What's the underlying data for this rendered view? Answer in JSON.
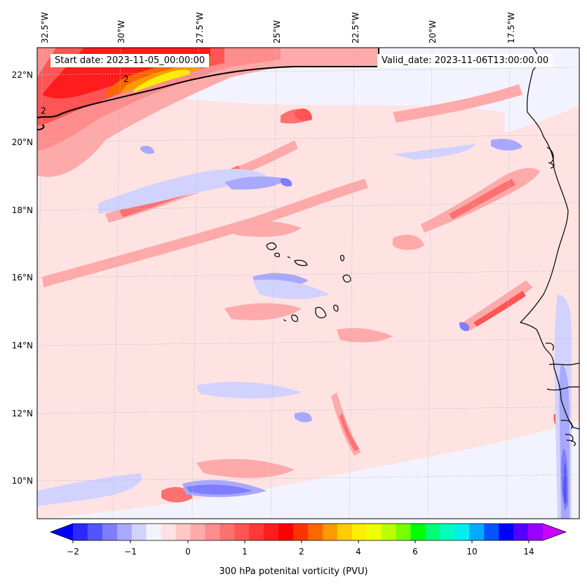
{
  "header": {
    "start_label": "Start date: 2023-11-05_00:00:00",
    "valid_label": "Valid_date: 2023-11-06T13:00:00.00"
  },
  "map": {
    "lon_labels": [
      "32.5°W",
      "30°W",
      "27.5°W",
      "25°W",
      "22.5°W",
      "20°W",
      "17.5°W"
    ],
    "lat_labels": [
      "22°N",
      "20°N",
      "18°N",
      "16°N",
      "14°N",
      "12°N",
      "10°N"
    ],
    "contour_label": "2",
    "colors": {
      "background_field": "#f3f3ff",
      "coastline": "#000000",
      "gridline": "#bbbbbb"
    }
  },
  "colorbar": {
    "label": "300 hPa potenital vorticity (PVU)",
    "tick_labels": [
      "−2",
      "−1",
      "0",
      "1",
      "2",
      "4",
      "6",
      "10",
      "14"
    ],
    "colors": [
      "#0000ff",
      "#2a2aff",
      "#5454ff",
      "#7e7eff",
      "#a8a8ff",
      "#d2d2ff",
      "#f3f3ff",
      "#ffe3e3",
      "#ffc6c6",
      "#ffaaaa",
      "#ff8d8d",
      "#ff7171",
      "#ff5555",
      "#ff3838",
      "#ff1c1c",
      "#ff0000",
      "#ff3300",
      "#ff6600",
      "#ff9900",
      "#ffcc00",
      "#ffee00",
      "#eeff00",
      "#bbff00",
      "#77ff00",
      "#00ff00",
      "#00ff77",
      "#00ffbb",
      "#00eeee",
      "#00aaff",
      "#0055ff",
      "#0000ff",
      "#5500ff",
      "#9900ff",
      "#cc00ff"
    ]
  }
}
